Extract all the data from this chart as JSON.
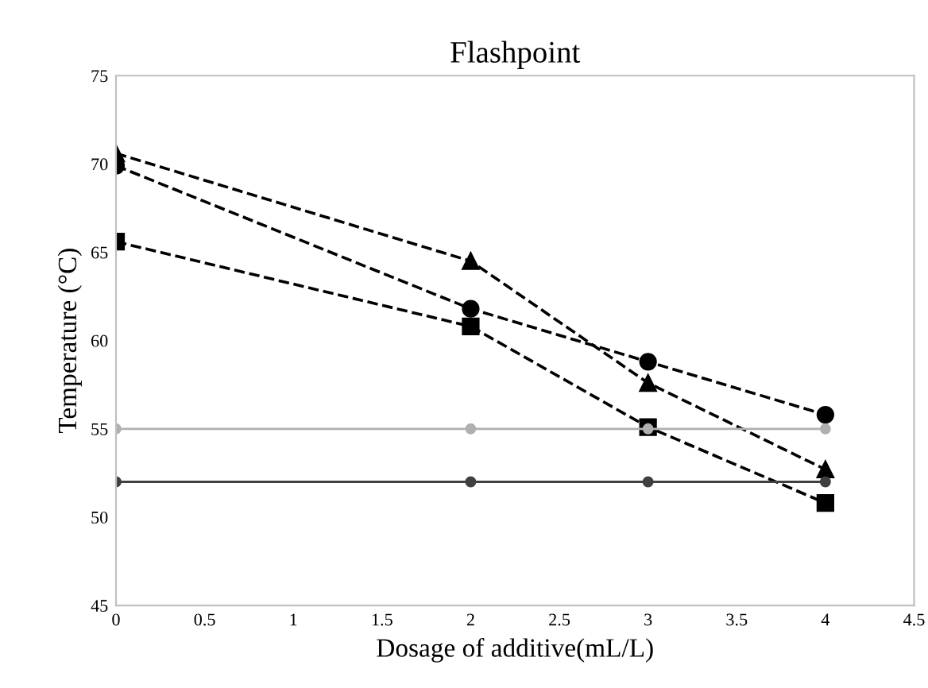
{
  "chart_data": {
    "type": "line",
    "title": "Flashpoint",
    "xlabel": "Dosage of additive(mL/L)",
    "ylabel": "Temperature (°C)",
    "x": [
      0,
      2,
      3,
      4
    ],
    "series": [
      {
        "color": "#000000",
        "values": [
          70.6,
          64.5,
          57.6,
          52.7
        ],
        "marker": "triangle",
        "line_style": "dashed"
      },
      {
        "color": "#000000",
        "values": [
          69.9,
          61.8,
          58.8,
          55.8
        ],
        "marker": "circle",
        "line_style": "dashed"
      },
      {
        "color": "#000000",
        "values": [
          65.6,
          60.8,
          55.1,
          50.8
        ],
        "marker": "square",
        "line_style": "dashed"
      },
      {
        "color": "#b0b0b0",
        "values": [
          55,
          55,
          55,
          55
        ],
        "marker": "circle",
        "line_style": "solid"
      },
      {
        "color": "#404040",
        "values": [
          52,
          52,
          52,
          52
        ],
        "marker": "circle",
        "line_style": "solid"
      }
    ],
    "xlim": [
      0,
      4.5
    ],
    "xticks": [
      0,
      0.5,
      1,
      1.5,
      2,
      2.5,
      3,
      3.5,
      4,
      4.5
    ],
    "ylim": [
      45,
      75
    ],
    "yticks": [
      45,
      50,
      55,
      60,
      65,
      70,
      75
    ],
    "grid": false
  }
}
